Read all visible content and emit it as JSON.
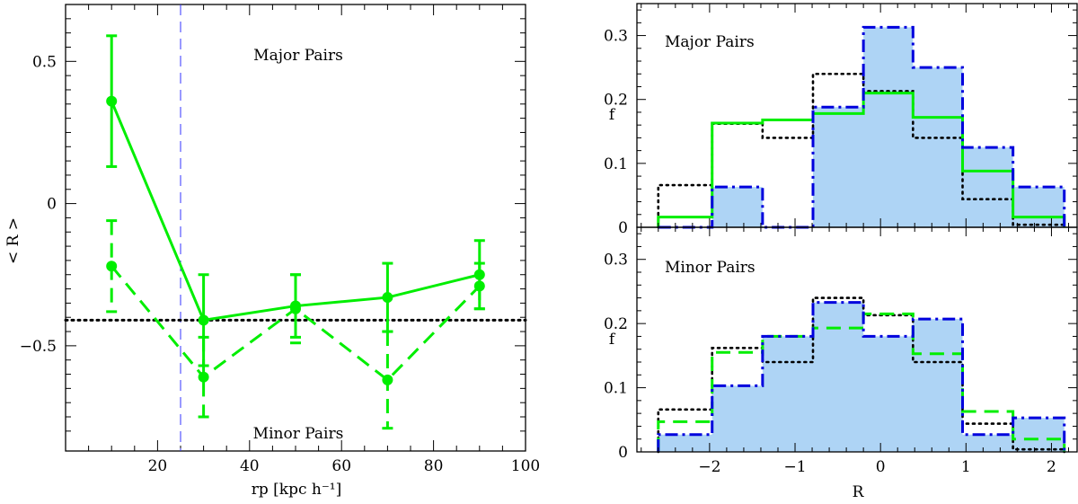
{
  "chart_data": [
    {
      "type": "line",
      "panel": "left",
      "xlabel": "rp [kpc  h⁻¹]",
      "ylabel": "< R >",
      "xlim": [
        0,
        100
      ],
      "ylim": [
        -0.87,
        0.7
      ],
      "xticks": [
        20,
        40,
        60,
        80,
        100
      ],
      "yticks": [
        0.5,
        0,
        -0.5
      ],
      "ytick_labels": [
        "0.5",
        "0",
        "−0.5"
      ],
      "annotations": [
        "Major Pairs",
        "Minor Pairs"
      ],
      "vline_x": 25,
      "hline_y": -0.41,
      "series": [
        {
          "name": "Major Pairs",
          "style": "solid",
          "color": "#00ee00",
          "x": [
            10,
            30,
            50,
            70,
            90
          ],
          "y": [
            0.36,
            -0.41,
            -0.36,
            -0.33,
            -0.25
          ],
          "err": [
            0.23,
            0.16,
            0.11,
            0.12,
            0.12
          ]
        },
        {
          "name": "Minor Pairs",
          "style": "dashed",
          "color": "#00ee00",
          "x": [
            10,
            30,
            50,
            70,
            90
          ],
          "y": [
            -0.22,
            -0.61,
            -0.37,
            -0.62,
            -0.29
          ],
          "err": [
            0.16,
            0.14,
            0.12,
            0.17,
            0.08
          ]
        }
      ]
    },
    {
      "type": "histogram",
      "panel": "right-top",
      "title": "Major Pairs",
      "ylabel": "f",
      "xlim": [
        -2.85,
        2.3
      ],
      "ylim": [
        0,
        0.35
      ],
      "yticks": [
        0,
        0.1,
        0.2,
        0.3
      ],
      "ytick_labels": [
        "0",
        "0.1",
        "0.2",
        "0.3"
      ],
      "bin_edges": [
        -2.6,
        -1.97,
        -1.38,
        -0.79,
        -0.2,
        0.38,
        0.96,
        1.55,
        2.15
      ],
      "series": [
        {
          "name": "filled",
          "style": "dashdot",
          "color": "#0000dd",
          "fill": "#aed4f5",
          "values": [
            0.0,
            0.063,
            0.0,
            0.188,
            0.313,
            0.25,
            0.125,
            0.063
          ]
        },
        {
          "name": "green",
          "style": "solid",
          "color": "#00ee00",
          "values": [
            0.016,
            0.163,
            0.168,
            0.178,
            0.21,
            0.172,
            0.088,
            0.016
          ]
        },
        {
          "name": "black",
          "style": "dotted",
          "color": "#000000",
          "values": [
            0.066,
            0.162,
            0.14,
            0.24,
            0.213,
            0.14,
            0.044,
            0.004
          ]
        }
      ]
    },
    {
      "type": "histogram",
      "panel": "right-bottom",
      "title": "Minor Pairs",
      "xlabel": "R",
      "ylabel": "f",
      "xlim": [
        -2.85,
        2.3
      ],
      "ylim": [
        0,
        0.35
      ],
      "xticks": [
        -2,
        -1,
        0,
        1,
        2
      ],
      "xtick_labels": [
        "−2",
        "−1",
        "0",
        "1",
        "2"
      ],
      "yticks": [
        0,
        0.1,
        0.2,
        0.3
      ],
      "ytick_labels": [
        "0",
        "0.1",
        "0.2",
        "0.3"
      ],
      "bin_edges": [
        -2.6,
        -1.97,
        -1.38,
        -0.79,
        -0.2,
        0.38,
        0.96,
        1.55,
        2.15
      ],
      "series": [
        {
          "name": "filled",
          "style": "dashdot",
          "color": "#0000dd",
          "fill": "#aed4f5",
          "values": [
            0.027,
            0.103,
            0.18,
            0.233,
            0.18,
            0.207,
            0.027,
            0.053
          ]
        },
        {
          "name": "green",
          "style": "dashed",
          "color": "#00ee00",
          "values": [
            0.047,
            0.155,
            0.18,
            0.193,
            0.215,
            0.153,
            0.063,
            0.02
          ]
        },
        {
          "name": "black",
          "style": "dotted",
          "color": "#000000",
          "values": [
            0.066,
            0.162,
            0.14,
            0.24,
            0.213,
            0.14,
            0.044,
            0.004
          ]
        }
      ]
    }
  ]
}
